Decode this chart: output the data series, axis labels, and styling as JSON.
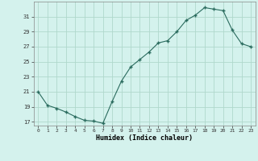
{
  "x": [
    0,
    1,
    2,
    3,
    4,
    5,
    6,
    7,
    8,
    9,
    10,
    11,
    12,
    13,
    14,
    15,
    16,
    17,
    18,
    19,
    20,
    21,
    22,
    23
  ],
  "y": [
    21,
    19.2,
    18.8,
    18.3,
    17.7,
    17.2,
    17.1,
    16.8,
    19.7,
    22.4,
    24.3,
    25.3,
    26.3,
    27.5,
    27.8,
    29.0,
    30.5,
    31.2,
    32.2,
    32.0,
    31.8,
    29.2,
    27.4,
    27.0
  ],
  "xlabel": "Humidex (Indice chaleur)",
  "bg_color": "#d4f2ed",
  "grid_color": "#b0d8cc",
  "line_color": "#2a6b5e",
  "marker_color": "#2a6b5e",
  "ylim": [
    16.5,
    33.0
  ],
  "xlim": [
    -0.5,
    23.5
  ],
  "yticks": [
    17,
    19,
    21,
    23,
    25,
    27,
    29,
    31
  ],
  "xticks": [
    0,
    1,
    2,
    3,
    4,
    5,
    6,
    7,
    8,
    9,
    10,
    11,
    12,
    13,
    14,
    15,
    16,
    17,
    18,
    19,
    20,
    21,
    22,
    23
  ]
}
